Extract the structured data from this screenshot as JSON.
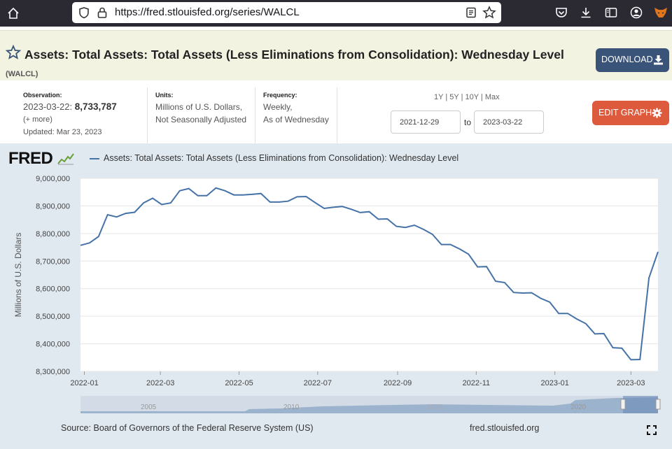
{
  "browser": {
    "url": "https://fred.stlouisfed.org/series/WALCL",
    "icons": [
      "home-icon",
      "shield-icon",
      "lock-icon",
      "reader-icon",
      "bookmark-star-icon",
      "pocket-icon",
      "download-icon",
      "sidebar-icon",
      "account-icon",
      "extension-icon"
    ]
  },
  "header": {
    "title": "Assets: Total Assets: Total Assets (Less Eliminations from Consolidation): Wednesday Level",
    "series_id": "(WALCL)",
    "download_label": "DOWNLOAD"
  },
  "meta": {
    "observation_label": "Observation:",
    "observation_date": "2023-03-22:",
    "observation_value": "8,733,787",
    "more": "(+ more)",
    "updated": "Updated: Mar 23, 2023",
    "units_label": "Units:",
    "units_line1": "Millions of U.S. Dollars,",
    "units_line2": "Not Seasonally Adjusted",
    "frequency_label": "Frequency:",
    "frequency_line1": "Weekly,",
    "frequency_line2": "As of Wednesday"
  },
  "range": {
    "presets": [
      "1Y",
      "5Y",
      "10Y",
      "Max"
    ],
    "start": "2021-12-29",
    "to_label": "to",
    "end": "2023-03-22"
  },
  "edit_label": "EDIT GRAPH",
  "logo": "FRED",
  "footer": {
    "source": "Source: Board of Governors of the Federal Reserve System (US)",
    "site": "fred.stlouisfed.org"
  },
  "colors": {
    "series": "#4572a7",
    "panel": "#e1e9f0",
    "download": "#3a5479",
    "edit": "#de5a3c"
  },
  "chart_data": {
    "type": "line",
    "ylabel": "Millions of U.S. Dollars",
    "ylim": [
      8300000,
      9000000
    ],
    "xlim": [
      "2021-12-29",
      "2023-03-22"
    ],
    "yticks": [
      8300000,
      8400000,
      8500000,
      8600000,
      8700000,
      8800000,
      8900000,
      9000000
    ],
    "ytick_labels": [
      "8,300,000",
      "8,400,000",
      "8,500,000",
      "8,600,000",
      "8,700,000",
      "8,800,000",
      "8,900,000",
      "9,000,000"
    ],
    "xticks": [
      "2022-01-01",
      "2022-03-01",
      "2022-05-01",
      "2022-07-01",
      "2022-09-01",
      "2022-11-01",
      "2023-01-01",
      "2023-03-01"
    ],
    "xtick_labels": [
      "2022-01",
      "2022-03",
      "2022-05",
      "2022-07",
      "2022-09",
      "2022-11",
      "2023-01",
      "2023-03"
    ],
    "grid": true,
    "legend": "top-left",
    "series": [
      {
        "name": "Assets: Total Assets: Total Assets (Less Eliminations from Consolidation): Wednesday Level",
        "x": [
          "2021-12-29",
          "2022-01-05",
          "2022-01-12",
          "2022-01-19",
          "2022-01-26",
          "2022-02-02",
          "2022-02-09",
          "2022-02-16",
          "2022-02-23",
          "2022-03-02",
          "2022-03-09",
          "2022-03-16",
          "2022-03-23",
          "2022-03-30",
          "2022-04-06",
          "2022-04-13",
          "2022-04-20",
          "2022-04-27",
          "2022-05-04",
          "2022-05-11",
          "2022-05-18",
          "2022-05-25",
          "2022-06-01",
          "2022-06-08",
          "2022-06-15",
          "2022-06-22",
          "2022-06-29",
          "2022-07-06",
          "2022-07-13",
          "2022-07-20",
          "2022-07-27",
          "2022-08-03",
          "2022-08-10",
          "2022-08-17",
          "2022-08-24",
          "2022-08-31",
          "2022-09-07",
          "2022-09-14",
          "2022-09-21",
          "2022-09-28",
          "2022-10-05",
          "2022-10-12",
          "2022-10-19",
          "2022-10-26",
          "2022-11-02",
          "2022-11-09",
          "2022-11-16",
          "2022-11-23",
          "2022-11-30",
          "2022-12-07",
          "2022-12-14",
          "2022-12-21",
          "2022-12-28",
          "2023-01-04",
          "2023-01-11",
          "2023-01-18",
          "2023-01-25",
          "2023-02-01",
          "2023-02-08",
          "2023-02-15",
          "2023-02-22",
          "2023-03-01",
          "2023-03-08",
          "2023-03-15",
          "2023-03-22"
        ],
        "values": [
          8757000,
          8766000,
          8789000,
          8868000,
          8860000,
          8873000,
          8877000,
          8911000,
          8928000,
          8905000,
          8911000,
          8955000,
          8963000,
          8937000,
          8937000,
          8965000,
          8955000,
          8940000,
          8940000,
          8942000,
          8945000,
          8914000,
          8914000,
          8917000,
          8933000,
          8934000,
          8912000,
          8891000,
          8895000,
          8898000,
          8888000,
          8876000,
          8879000,
          8852000,
          8853000,
          8826000,
          8822000,
          8830000,
          8815000,
          8797000,
          8760000,
          8760000,
          8744000,
          8725000,
          8679000,
          8680000,
          8627000,
          8622000,
          8586000,
          8584000,
          8585000,
          8565000,
          8551000,
          8510000,
          8510000,
          8490000,
          8473000,
          8436000,
          8437000,
          8386000,
          8384000,
          8342000,
          8343000,
          8639000,
          8733787
        ]
      }
    ]
  }
}
